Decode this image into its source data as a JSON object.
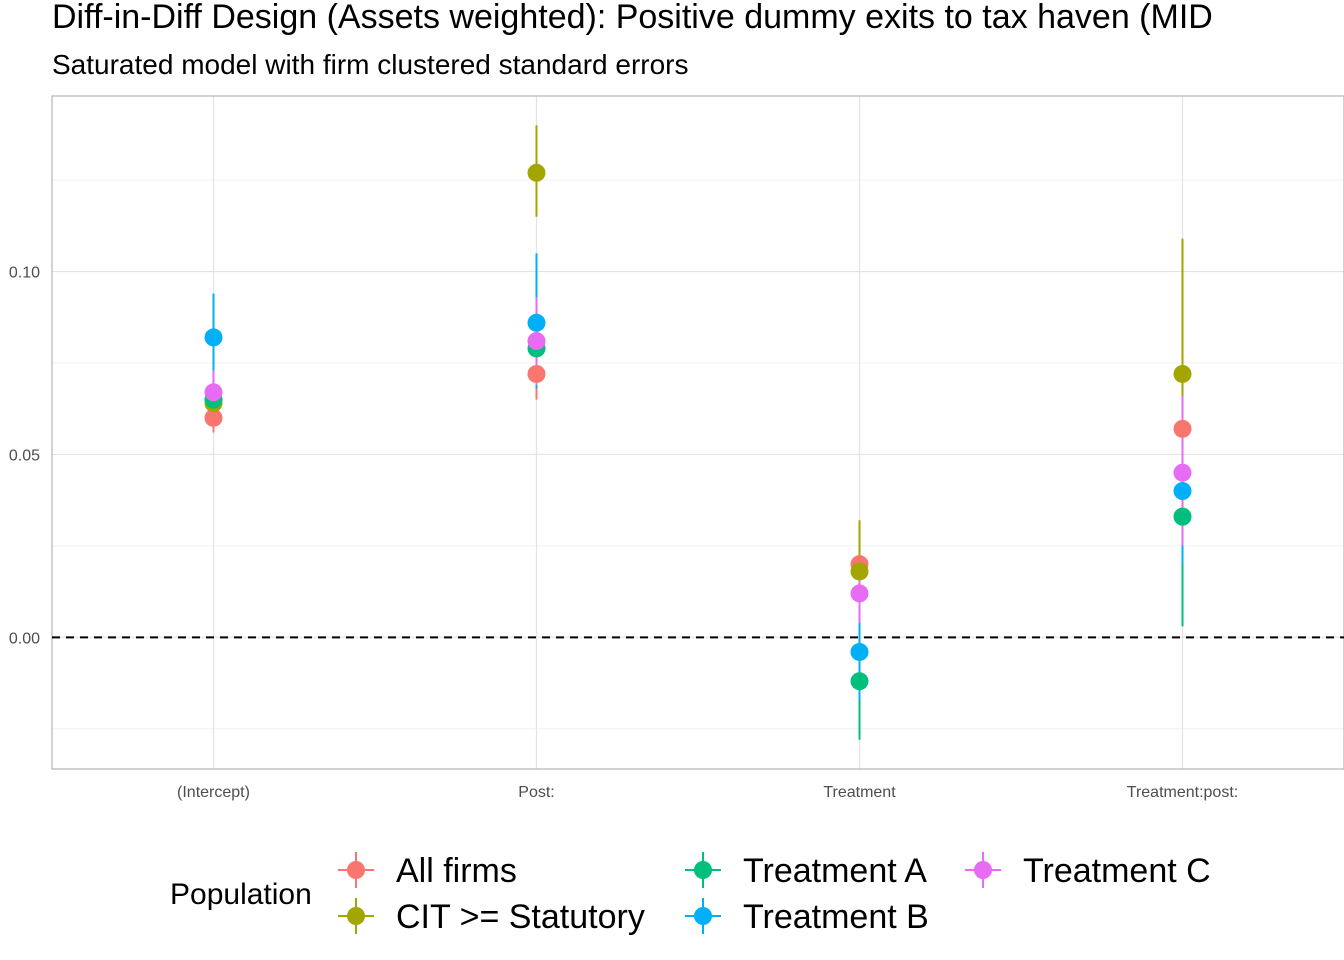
{
  "chart_data": {
    "type": "scatter",
    "title": "Diff-in-Diff Design (Assets weighted): Positive dummy exits to tax haven (MID",
    "subtitle": "Saturated model with firm clustered standard errors",
    "xlabel": "",
    "ylabel": "",
    "categories": [
      "(Intercept)",
      "Post:",
      "Treatment",
      "Treatment:post:"
    ],
    "ylim": [
      -0.036,
      0.148
    ],
    "yticks": [
      0.0,
      0.05,
      0.1
    ],
    "ytick_labels": [
      "0.00",
      "0.05",
      "0.10"
    ],
    "reference_line": {
      "y": 0.0,
      "style": "dashed"
    },
    "grid": true,
    "legend": {
      "title": "Population",
      "position": "bottom"
    },
    "series": [
      {
        "name": "All firms",
        "color": "#F8766D",
        "values": [
          0.06,
          0.072,
          0.02,
          0.057
        ],
        "lower": [
          0.056,
          0.065,
          0.013,
          0.047
        ],
        "upper": [
          0.065,
          0.079,
          0.027,
          0.068
        ]
      },
      {
        "name": "CIT >= Statutory",
        "color": "#A3A500",
        "values": [
          0.064,
          0.127,
          0.018,
          0.072
        ],
        "lower": [
          0.06,
          0.115,
          0.004,
          0.036
        ],
        "upper": [
          0.07,
          0.14,
          0.032,
          0.109
        ]
      },
      {
        "name": "Treatment A",
        "color": "#00BF7D",
        "values": [
          0.065,
          0.079,
          -0.012,
          0.033
        ],
        "lower": [
          0.06,
          0.072,
          -0.028,
          0.003
        ],
        "upper": [
          0.07,
          0.087,
          0.003,
          0.063
        ]
      },
      {
        "name": "Treatment B",
        "color": "#00B0F6",
        "values": [
          0.082,
          0.086,
          -0.004,
          0.04
        ],
        "lower": [
          0.071,
          0.068,
          -0.017,
          0.02
        ],
        "upper": [
          0.094,
          0.105,
          0.009,
          0.06
        ]
      },
      {
        "name": "Treatment C",
        "color": "#E76BF3",
        "values": [
          0.067,
          0.081,
          0.012,
          0.045
        ],
        "lower": [
          0.061,
          0.069,
          0.004,
          0.025
        ],
        "upper": [
          0.073,
          0.093,
          0.02,
          0.066
        ]
      }
    ]
  }
}
